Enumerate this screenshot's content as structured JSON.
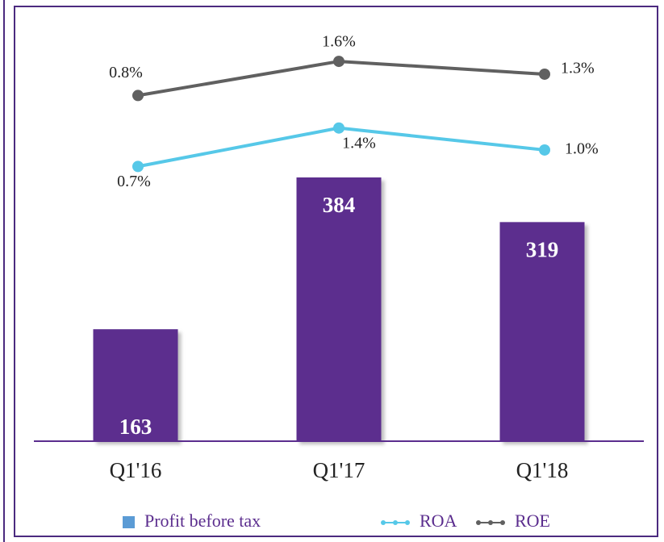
{
  "chart_data": {
    "type": "bar",
    "categories": [
      "Q1'16",
      "Q1'17",
      "Q1'18"
    ],
    "series": [
      {
        "name": "Profit before tax",
        "type": "bar",
        "color": "#5b2d8e",
        "legend_color": "#5b9bd5",
        "values": [
          163,
          384,
          319
        ]
      },
      {
        "name": "ROA",
        "type": "line",
        "axis": "y2",
        "color": "#56c8e8",
        "values": [
          0.7,
          1.4,
          1.0
        ],
        "value_labels": [
          "0.7%",
          "1.4%",
          "1.0%"
        ]
      },
      {
        "name": "ROE",
        "type": "line",
        "axis": "y3",
        "color": "#606060",
        "values": [
          0.8,
          1.6,
          1.3
        ],
        "value_labels": [
          "0.8%",
          "1.6%",
          "1.3%"
        ]
      }
    ],
    "ylim": [
      0,
      640
    ],
    "y2lim": [
      -4.3,
      3.7
    ],
    "y3lim": [
      -7.3,
      3.0
    ]
  }
}
